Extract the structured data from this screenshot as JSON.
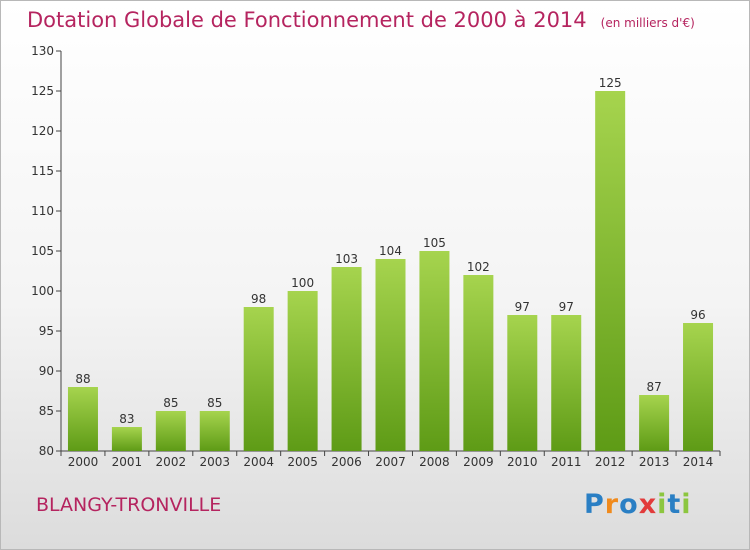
{
  "title": "Dotation Globale de Fonctionnement de 2000 à 2014",
  "unit": "(en milliers d'€)",
  "commune": "BLANGY-TRONVILLE",
  "logo": {
    "letters": [
      "P",
      "r",
      "o",
      "x",
      "i",
      "t",
      "i"
    ],
    "colors": [
      "#2a7fc4",
      "#f08a1c",
      "#2a7fc4",
      "#e23b3b",
      "#8cc63f",
      "#2a7fc4",
      "#8cc63f"
    ]
  },
  "colors": {
    "bar_light": "#a6d44e",
    "bar_dark": "#5e9b16",
    "title": "#b5245f"
  },
  "chart_data": {
    "type": "bar",
    "categories": [
      "2000",
      "2001",
      "2002",
      "2003",
      "2004",
      "2005",
      "2006",
      "2007",
      "2008",
      "2009",
      "2010",
      "2011",
      "2012",
      "2013",
      "2014"
    ],
    "values": [
      88,
      83,
      85,
      85,
      98,
      100,
      103,
      104,
      105,
      102,
      97,
      97,
      125,
      87,
      96
    ],
    "ylim": [
      80,
      130
    ],
    "yticks": [
      "80",
      "85",
      "90",
      "95",
      "100",
      "105",
      "110",
      "115",
      "120",
      "125",
      "130"
    ],
    "grid": false
  }
}
